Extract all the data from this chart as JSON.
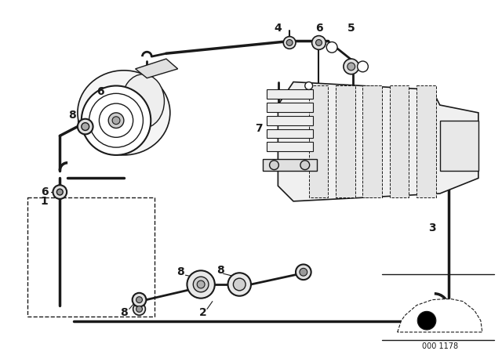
{
  "bg_color": "#ffffff",
  "line_color": "#1a1a1a",
  "diagram_code": "000 1178",
  "figsize": [
    6.4,
    4.48
  ],
  "dpi": 100
}
